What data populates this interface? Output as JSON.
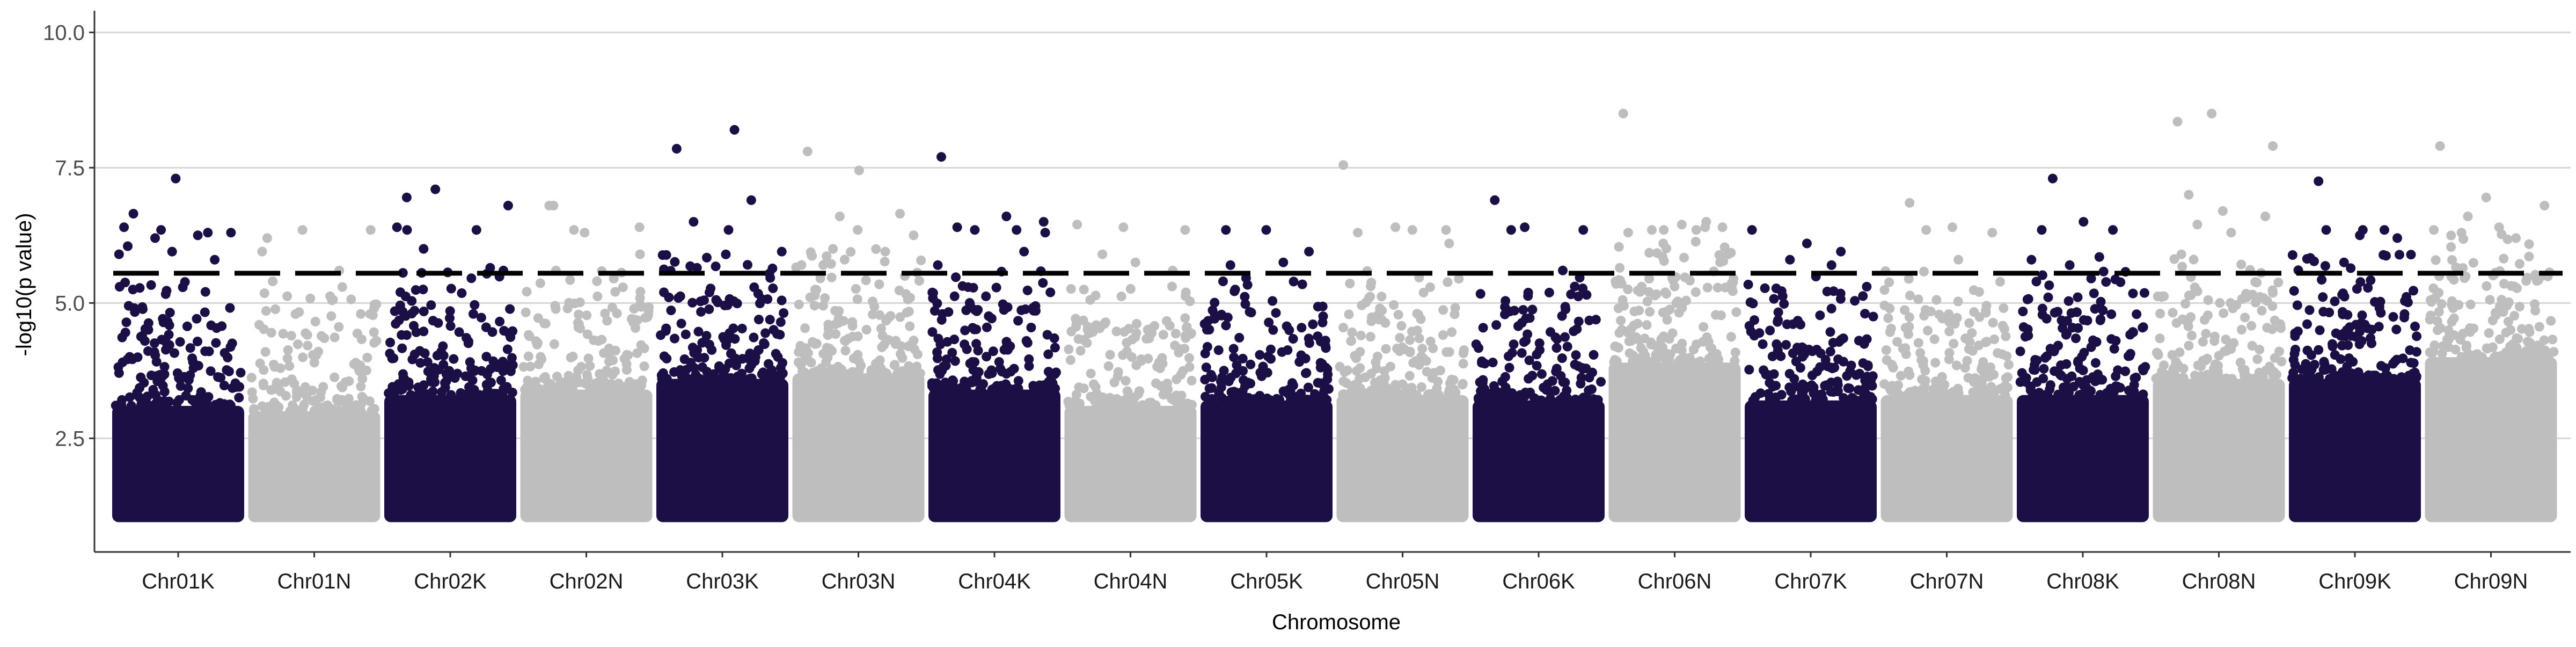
{
  "chart_data": {
    "type": "scatter",
    "subtype": "manhattan",
    "title": "",
    "xlabel": "Chromosome",
    "ylabel": "-log10(p value)",
    "ylim": [
      0.4,
      10.4
    ],
    "yticks": [
      2.5,
      5.0,
      7.5,
      10.0
    ],
    "ytick_labels": [
      "2.5",
      "5.0",
      "7.5",
      "10.0"
    ],
    "grid": "horizontal major lines",
    "legend": "none",
    "threshold": 5.55,
    "threshold_style": "long-dash",
    "colors": {
      "odd": "#1c0f45",
      "even": "#bebebe",
      "threshold": "#000000",
      "grid": "#d6d6d6",
      "axis": "#333333"
    },
    "categories": [
      "Chr01K",
      "Chr01N",
      "Chr02K",
      "Chr02N",
      "Chr03K",
      "Chr03N",
      "Chr04K",
      "Chr04N",
      "Chr05K",
      "Chr05N",
      "Chr06K",
      "Chr06N",
      "Chr07K",
      "Chr07N",
      "Chr08K",
      "Chr08N",
      "Chr09K",
      "Chr09N"
    ],
    "series": [
      {
        "chromosome": "Chr01K",
        "color": "#1c0f45",
        "dense_top": 3.7,
        "max": 7.3,
        "notable_points": [
          6.65,
          7.3,
          6.3,
          6.35,
          6.25,
          6.4,
          6.2,
          6.3,
          5.9,
          5.95,
          5.8,
          6.05
        ]
      },
      {
        "chromosome": "Chr01N",
        "color": "#bebebe",
        "dense_top": 3.6,
        "max": 6.35,
        "notable_points": [
          6.2,
          6.35,
          6.35,
          5.4,
          5.6,
          5.95
        ]
      },
      {
        "chromosome": "Chr02K",
        "color": "#1c0f45",
        "dense_top": 3.9,
        "max": 7.1,
        "notable_points": [
          6.95,
          7.1,
          6.8,
          6.35,
          6.35,
          6.4,
          6.0,
          5.65,
          5.2
        ]
      },
      {
        "chromosome": "Chr02N",
        "color": "#bebebe",
        "dense_top": 4.0,
        "max": 6.8,
        "notable_points": [
          6.8,
          6.35,
          6.4,
          6.8,
          6.3,
          5.9,
          5.6
        ]
      },
      {
        "chromosome": "Chr03K",
        "color": "#1c0f45",
        "dense_top": 4.2,
        "max": 8.2,
        "notable_points": [
          7.85,
          8.2,
          6.9,
          6.5,
          6.35,
          5.95,
          5.65
        ]
      },
      {
        "chromosome": "Chr03N",
        "color": "#bebebe",
        "dense_top": 4.3,
        "max": 7.8,
        "notable_points": [
          7.8,
          7.45,
          6.65,
          6.6,
          6.35,
          6.25,
          6.0,
          5.95,
          5.7
        ]
      },
      {
        "chromosome": "Chr04K",
        "color": "#1c0f45",
        "dense_top": 4.0,
        "max": 7.7,
        "notable_points": [
          7.7,
          6.6,
          6.5,
          6.4,
          6.35,
          6.3,
          6.35,
          5.95,
          5.7
        ]
      },
      {
        "chromosome": "Chr04N",
        "color": "#bebebe",
        "dense_top": 3.7,
        "max": 6.45,
        "notable_points": [
          6.45,
          6.4,
          6.35,
          5.9,
          5.75,
          5.6
        ]
      },
      {
        "chromosome": "Chr05K",
        "color": "#1c0f45",
        "dense_top": 3.8,
        "max": 6.35,
        "notable_points": [
          6.35,
          6.35,
          5.95,
          5.7,
          5.75
        ]
      },
      {
        "chromosome": "Chr05N",
        "color": "#bebebe",
        "dense_top": 3.9,
        "max": 7.55,
        "notable_points": [
          7.55,
          6.4,
          6.35,
          6.3,
          6.35,
          6.1
        ]
      },
      {
        "chromosome": "Chr06K",
        "color": "#1c0f45",
        "dense_top": 3.8,
        "max": 6.9,
        "notable_points": [
          6.9,
          6.4,
          6.35,
          6.35,
          5.6
        ]
      },
      {
        "chromosome": "Chr06N",
        "color": "#bebebe",
        "dense_top": 4.5,
        "max": 8.5,
        "notable_points": [
          8.5,
          6.45,
          6.4,
          6.35,
          6.35,
          6.4,
          6.35,
          6.5,
          6.3,
          6.1,
          5.9
        ]
      },
      {
        "chromosome": "Chr07K",
        "color": "#1c0f45",
        "dense_top": 3.8,
        "max": 6.35,
        "notable_points": [
          6.35,
          6.1,
          5.95,
          5.8,
          5.7
        ]
      },
      {
        "chromosome": "Chr07N",
        "color": "#bebebe",
        "dense_top": 3.9,
        "max": 6.85,
        "notable_points": [
          6.85,
          6.4,
          6.3,
          6.35,
          5.8
        ]
      },
      {
        "chromosome": "Chr08K",
        "color": "#1c0f45",
        "dense_top": 3.9,
        "max": 7.3,
        "notable_points": [
          7.3,
          6.5,
          6.35,
          6.35,
          5.85,
          5.8,
          5.7
        ]
      },
      {
        "chromosome": "Chr08N",
        "color": "#bebebe",
        "dense_top": 4.2,
        "max": 8.5,
        "notable_points": [
          8.35,
          8.5,
          7.9,
          7.0,
          6.7,
          6.6,
          6.45,
          6.3,
          5.9
        ]
      },
      {
        "chromosome": "Chr09K",
        "color": "#1c0f45",
        "dense_top": 4.2,
        "max": 7.25,
        "notable_points": [
          7.25,
          6.35,
          6.35,
          6.35,
          6.25,
          6.2,
          5.75
        ]
      },
      {
        "chromosome": "Chr09N",
        "color": "#bebebe",
        "dense_top": 4.6,
        "max": 7.9,
        "notable_points": [
          7.9,
          6.95,
          6.8,
          6.6,
          6.4,
          6.35,
          6.3,
          6.2
        ]
      }
    ]
  }
}
